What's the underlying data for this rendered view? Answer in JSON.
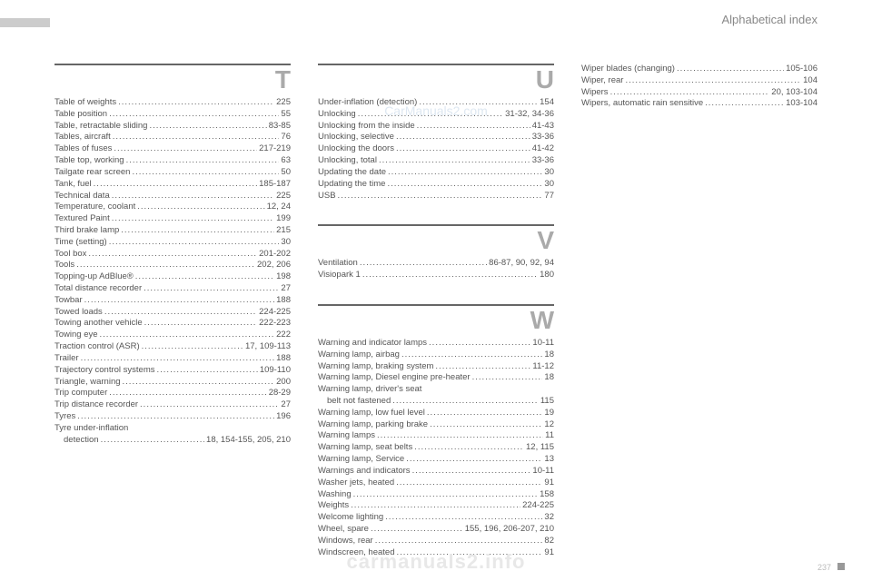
{
  "header": {
    "title": "Alphabetical index"
  },
  "watermarks": {
    "top": "CarManuals2.com",
    "bottom": "carmanuals2.info"
  },
  "pageNumber": "237",
  "columns": [
    {
      "sections": [
        {
          "letter": "T",
          "entries": [
            {
              "label": "Table of weights",
              "page": "225"
            },
            {
              "label": "Table position",
              "page": "55"
            },
            {
              "label": "Table, retractable sliding",
              "page": "83-85"
            },
            {
              "label": "Tables, aircraft",
              "page": "76"
            },
            {
              "label": "Tables of fuses",
              "page": "217-219"
            },
            {
              "label": "Table top, working",
              "page": "63"
            },
            {
              "label": "Tailgate rear screen",
              "page": "50"
            },
            {
              "label": "Tank, fuel",
              "page": "185-187"
            },
            {
              "label": "Technical data",
              "page": "225"
            },
            {
              "label": "Temperature, coolant",
              "page": "12, 24"
            },
            {
              "label": "Textured Paint",
              "page": "199"
            },
            {
              "label": "Third brake lamp",
              "page": "215"
            },
            {
              "label": "Time (setting)",
              "page": "30"
            },
            {
              "label": "Tool box",
              "page": "201-202"
            },
            {
              "label": "Tools",
              "page": "202, 206"
            },
            {
              "label": "Topping-up AdBlue®",
              "page": "198"
            },
            {
              "label": "Total distance recorder",
              "page": "27"
            },
            {
              "label": "Towbar",
              "page": "188"
            },
            {
              "label": "Towed loads",
              "page": "224-225"
            },
            {
              "label": "Towing another vehicle",
              "page": "222-223"
            },
            {
              "label": "Towing eye",
              "page": "222"
            },
            {
              "label": "Traction control (ASR)",
              "page": "17, 109-113"
            },
            {
              "label": "Trailer",
              "page": "188"
            },
            {
              "label": "Trajectory control systems",
              "page": "109-110"
            },
            {
              "label": "Triangle, warning",
              "page": "200"
            },
            {
              "label": "Trip computer",
              "page": "28-29"
            },
            {
              "label": "Trip distance recorder",
              "page": "27"
            },
            {
              "label": "Tyres",
              "page": "196"
            },
            {
              "label": "Tyre under-inflation",
              "page": ""
            },
            {
              "label": "detection",
              "page": "18, 154-155, 205, 210",
              "sub": true
            }
          ]
        }
      ]
    },
    {
      "sections": [
        {
          "letter": "U",
          "entries": [
            {
              "label": "Under-inflation (detection)",
              "page": "154"
            },
            {
              "label": "Unlocking",
              "page": "31-32, 34-36"
            },
            {
              "label": "Unlocking from the inside",
              "page": "41-43"
            },
            {
              "label": "Unlocking, selective",
              "page": "33-36"
            },
            {
              "label": "Unlocking the doors",
              "page": "41-42"
            },
            {
              "label": "Unlocking, total",
              "page": "33-36"
            },
            {
              "label": "Updating the date",
              "page": "30"
            },
            {
              "label": "Updating the time",
              "page": "30"
            },
            {
              "label": "USB",
              "page": "77"
            }
          ]
        },
        {
          "letter": "V",
          "entries": [
            {
              "label": "Ventilation",
              "page": "86-87, 90, 92, 94"
            },
            {
              "label": "Visiopark 1",
              "page": "180"
            }
          ]
        },
        {
          "letter": "W",
          "entries": [
            {
              "label": "Warning and indicator lamps",
              "page": "10-11"
            },
            {
              "label": "Warning lamp, airbag",
              "page": "18"
            },
            {
              "label": "Warning lamp, braking system",
              "page": "11-12"
            },
            {
              "label": "Warning lamp, Diesel engine pre-heater",
              "page": "18"
            },
            {
              "label": "Warning lamp, driver's seat",
              "page": ""
            },
            {
              "label": "belt not fastened",
              "page": "115",
              "sub": true
            },
            {
              "label": "Warning lamp, low fuel level",
              "page": "19"
            },
            {
              "label": "Warning lamp, parking brake",
              "page": "12"
            },
            {
              "label": "Warning lamps",
              "page": "11"
            },
            {
              "label": "Warning lamp, seat belts",
              "page": "12, 115"
            },
            {
              "label": "Warning lamp, Service",
              "page": "13"
            },
            {
              "label": "Warnings and indicators",
              "page": "10-11"
            },
            {
              "label": "Washer jets, heated",
              "page": "91"
            },
            {
              "label": "Washing",
              "page": "158"
            },
            {
              "label": "Weights",
              "page": "224-225"
            },
            {
              "label": "Welcome lighting",
              "page": "32"
            },
            {
              "label": "Wheel, spare",
              "page": "155, 196, 206-207, 210"
            },
            {
              "label": "Windows, rear",
              "page": "82"
            },
            {
              "label": "Windscreen, heated",
              "page": "91"
            }
          ]
        }
      ]
    },
    {
      "sections": [
        {
          "letter": "",
          "entries": [
            {
              "label": "Wiper blades (changing)",
              "page": "105-106"
            },
            {
              "label": "Wiper, rear",
              "page": "104"
            },
            {
              "label": "Wipers",
              "page": "20, 103-104"
            },
            {
              "label": "Wipers, automatic rain sensitive",
              "page": "103-104"
            }
          ]
        }
      ]
    }
  ]
}
